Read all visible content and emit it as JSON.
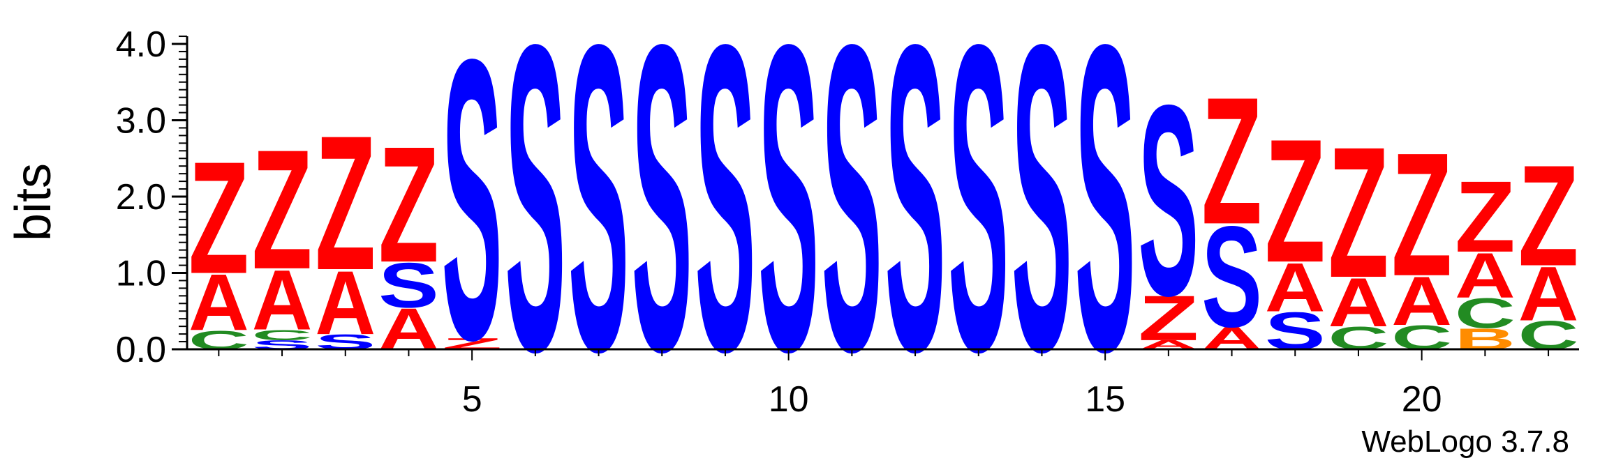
{
  "chart_data": {
    "type": "sequence-logo",
    "title": "",
    "xlabel": "",
    "ylabel": "bits",
    "ylim": [
      0,
      4.1
    ],
    "yticks": [
      "0.0",
      "1.0",
      "2.0",
      "3.0",
      "4.0"
    ],
    "xticks": [
      5,
      10,
      15,
      20
    ],
    "positions": 22,
    "colors": {
      "Z": "#ff0000",
      "A": "#ff0000",
      "S": "#0000ff",
      "C": "#228b22",
      "B": "#ff8c00"
    },
    "stacks": [
      {
        "position": 1,
        "letters": [
          {
            "letter": "C",
            "bits": 0.25
          },
          {
            "letter": "A",
            "bits": 0.75
          },
          {
            "letter": "Z",
            "bits": 1.5
          }
        ]
      },
      {
        "position": 2,
        "letters": [
          {
            "letter": "S",
            "bits": 0.12
          },
          {
            "letter": "C",
            "bits": 0.14
          },
          {
            "letter": "A",
            "bits": 0.8
          },
          {
            "letter": "Z",
            "bits": 1.6
          }
        ]
      },
      {
        "position": 3,
        "letters": [
          {
            "letter": "S",
            "bits": 0.2
          },
          {
            "letter": "A",
            "bits": 0.85
          },
          {
            "letter": "Z",
            "bits": 1.8
          }
        ]
      },
      {
        "position": 4,
        "letters": [
          {
            "letter": "A",
            "bits": 0.55
          },
          {
            "letter": "S",
            "bits": 0.6
          },
          {
            "letter": "Z",
            "bits": 1.55
          }
        ]
      },
      {
        "position": 5,
        "letters": [
          {
            "letter": "Z",
            "bits": 0.15
          },
          {
            "letter": "S",
            "bits": 3.75
          }
        ]
      },
      {
        "position": 6,
        "letters": [
          {
            "letter": "S",
            "bits": 4.1
          }
        ]
      },
      {
        "position": 7,
        "letters": [
          {
            "letter": "S",
            "bits": 4.1
          }
        ]
      },
      {
        "position": 8,
        "letters": [
          {
            "letter": "S",
            "bits": 4.1
          }
        ]
      },
      {
        "position": 9,
        "letters": [
          {
            "letter": "S",
            "bits": 4.1
          }
        ]
      },
      {
        "position": 10,
        "letters": [
          {
            "letter": "S",
            "bits": 4.1
          }
        ]
      },
      {
        "position": 11,
        "letters": [
          {
            "letter": "S",
            "bits": 4.1
          }
        ]
      },
      {
        "position": 12,
        "letters": [
          {
            "letter": "S",
            "bits": 4.1
          }
        ]
      },
      {
        "position": 13,
        "letters": [
          {
            "letter": "S",
            "bits": 4.1
          }
        ]
      },
      {
        "position": 14,
        "letters": [
          {
            "letter": "S",
            "bits": 4.1
          }
        ]
      },
      {
        "position": 15,
        "letters": [
          {
            "letter": "S",
            "bits": 4.1
          }
        ]
      },
      {
        "position": 16,
        "letters": [
          {
            "letter": "A",
            "bits": 0.12
          },
          {
            "letter": "Z",
            "bits": 0.6
          },
          {
            "letter": "S",
            "bits": 2.55
          }
        ]
      },
      {
        "position": 17,
        "letters": [
          {
            "letter": "A",
            "bits": 0.3
          },
          {
            "letter": "S",
            "bits": 1.35
          },
          {
            "letter": "Z",
            "bits": 1.7
          }
        ]
      },
      {
        "position": 18,
        "letters": [
          {
            "letter": "S",
            "bits": 0.5
          },
          {
            "letter": "A",
            "bits": 0.65
          },
          {
            "letter": "Z",
            "bits": 1.65
          }
        ]
      },
      {
        "position": 19,
        "letters": [
          {
            "letter": "C",
            "bits": 0.3
          },
          {
            "letter": "A",
            "bits": 0.65
          },
          {
            "letter": "Z",
            "bits": 1.75
          }
        ]
      },
      {
        "position": 20,
        "letters": [
          {
            "letter": "C",
            "bits": 0.32
          },
          {
            "letter": "A",
            "bits": 0.65
          },
          {
            "letter": "Z",
            "bits": 1.65
          }
        ]
      },
      {
        "position": 21,
        "letters": [
          {
            "letter": "B",
            "bits": 0.28
          },
          {
            "letter": "C",
            "bits": 0.4
          },
          {
            "letter": "A",
            "bits": 0.6
          },
          {
            "letter": "Z",
            "bits": 0.95
          }
        ]
      },
      {
        "position": 22,
        "letters": [
          {
            "letter": "C",
            "bits": 0.38
          },
          {
            "letter": "A",
            "bits": 0.72
          },
          {
            "letter": "Z",
            "bits": 1.35
          }
        ]
      }
    ]
  },
  "footer": {
    "credit": "WebLogo 3.7.8"
  }
}
